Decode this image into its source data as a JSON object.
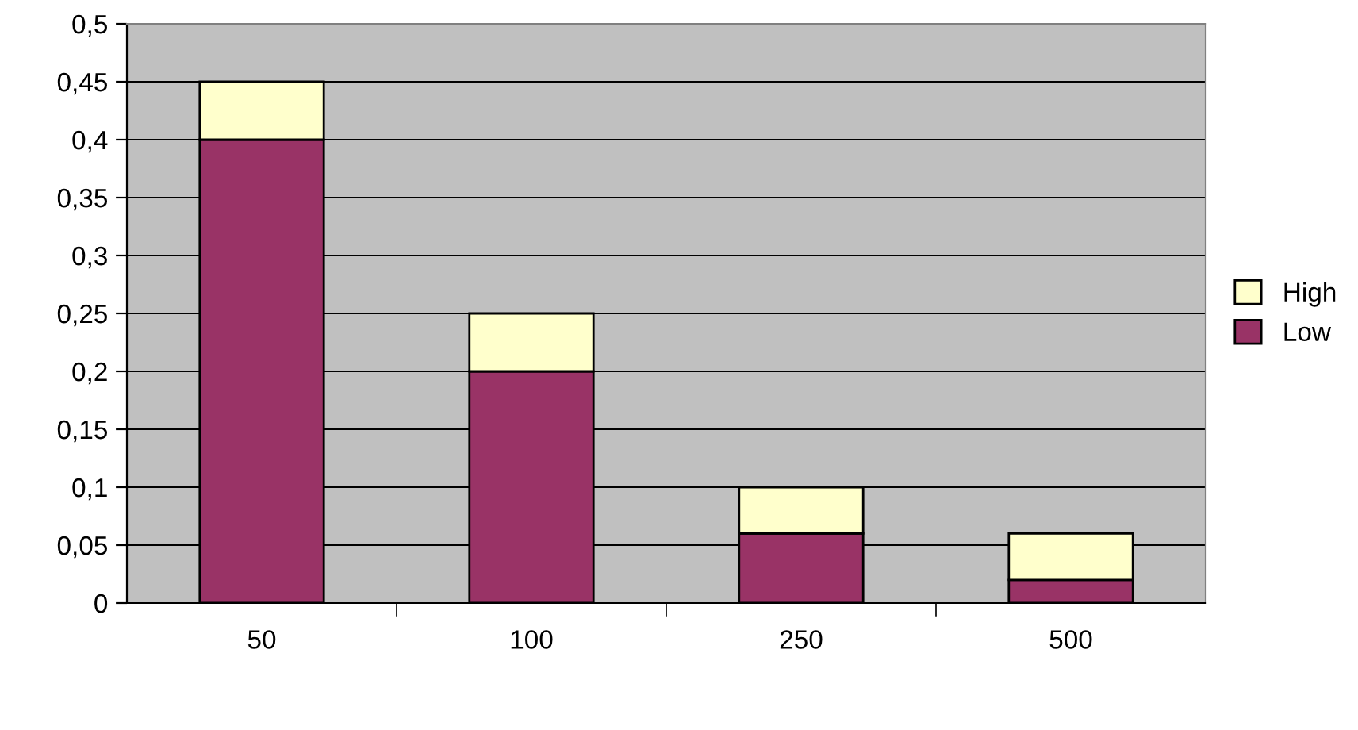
{
  "chart_data": {
    "type": "bar",
    "stacked": true,
    "categories": [
      "50",
      "100",
      "250",
      "500"
    ],
    "series": [
      {
        "name": "Low",
        "color": "#993366",
        "values": [
          0.4,
          0.2,
          0.06,
          0.02
        ]
      },
      {
        "name": "High",
        "color": "#ffffcc",
        "values": [
          0.05,
          0.05,
          0.04,
          0.04
        ]
      }
    ],
    "ylim": [
      0,
      0.5
    ],
    "yticks": [
      0,
      {
        "value": 0.05,
        "label": "0,05"
      },
      {
        "value": 0.1,
        "label": "0,1"
      },
      {
        "value": 0.15,
        "label": "0,15"
      },
      {
        "value": 0.2,
        "label": "0,2"
      },
      {
        "value": 0.25,
        "label": "0,25"
      },
      {
        "value": 0.3,
        "label": "0,3"
      },
      {
        "value": 0.35,
        "label": "0,35"
      },
      {
        "value": 0.4,
        "label": "0,4"
      },
      {
        "value": 0.45,
        "label": "0,45"
      },
      {
        "value": 0.5,
        "label": "0,5"
      }
    ],
    "grid": "y",
    "legend": "right"
  }
}
